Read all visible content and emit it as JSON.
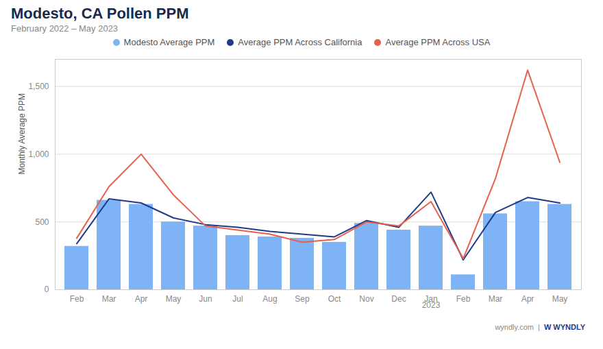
{
  "chart_data": {
    "type": "bar",
    "title": "Modesto, CA Pollen PPM",
    "subtitle": "February 2022 – May 2023",
    "ylabel": "Monthly Average PPM",
    "categories": [
      "Feb",
      "Mar",
      "Apr",
      "May",
      "Jun",
      "Jul",
      "Aug",
      "Sep",
      "Oct",
      "Nov",
      "Dec",
      "Jan",
      "Feb",
      "Mar",
      "Apr",
      "May"
    ],
    "series": [
      {
        "name": "Modesto Average PPM",
        "type": "bar",
        "color": "#7EB3F5",
        "values": [
          320,
          660,
          630,
          500,
          470,
          400,
          390,
          380,
          350,
          490,
          440,
          470,
          110,
          560,
          650,
          630
        ]
      },
      {
        "name": "Average PPM Across California",
        "type": "line",
        "color": "#1F3A8A",
        "values": [
          340,
          670,
          640,
          530,
          480,
          460,
          430,
          410,
          390,
          510,
          460,
          720,
          220,
          570,
          680,
          640
        ]
      },
      {
        "name": "Average PPM Across USA",
        "type": "line",
        "color": "#E8604A",
        "values": [
          380,
          760,
          1000,
          700,
          470,
          440,
          410,
          350,
          370,
          500,
          470,
          650,
          230,
          820,
          1620,
          940
        ]
      }
    ],
    "ylim": [
      0,
      1700
    ],
    "yticks": [
      0,
      500,
      {
        "value": 1000,
        "label": "1,000"
      },
      {
        "value": 1500,
        "label": "1,500"
      }
    ],
    "grid": true,
    "legend": "top",
    "annotations": [
      {
        "text": "2023",
        "x": 11
      }
    ],
    "footer": [
      {
        "text": "wyndly.com"
      },
      {
        "text": "|"
      },
      {
        "text": "W  WYNDLY",
        "color": "#1F3A8A"
      }
    ]
  }
}
